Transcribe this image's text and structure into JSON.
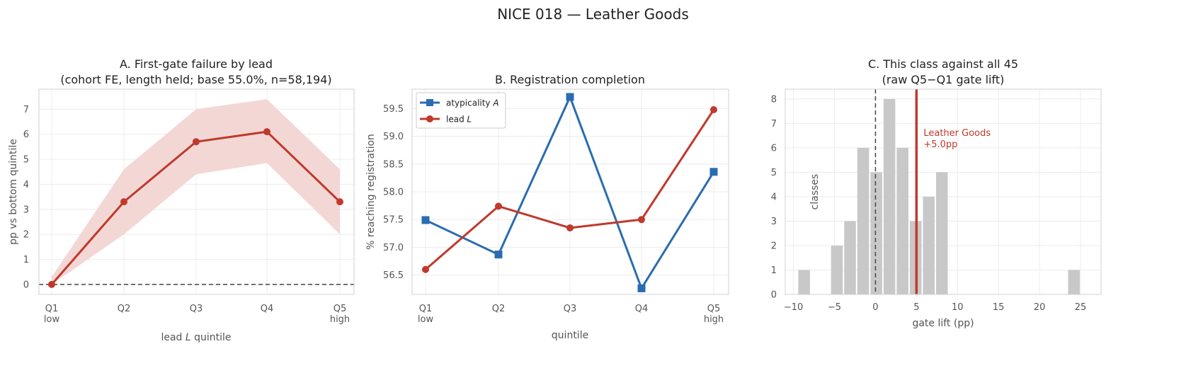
{
  "figure": {
    "title": "NICE 018 — Leather Goods"
  },
  "colors": {
    "red": "#c0392b",
    "blue": "#2b6cb0",
    "band": "#f2d7d5",
    "hist": "#c8c8c8",
    "grid": "#ececec",
    "spine": "#d0d0d0",
    "text": "#555555",
    "title": "#222222",
    "zero": "#444444"
  },
  "chart_data": [
    {
      "id": "A",
      "type": "line",
      "title": "A. First-gate failure by lead",
      "subtitle": "(cohort FE, length held; base 55.0%, n=58,194)",
      "xlabel_main": "lead ",
      "xlabel_italic": "L",
      "xlabel_tail": " quintile",
      "ylabel": "pp vs bottom quintile",
      "categories": [
        "Q1",
        "Q2",
        "Q3",
        "Q4",
        "Q5"
      ],
      "category_sublabels": [
        "low",
        "",
        "",
        "",
        "high"
      ],
      "ylim": [
        -0.4,
        7.8
      ],
      "yticks": [
        0,
        1,
        2,
        3,
        4,
        5,
        6,
        7
      ],
      "grid": true,
      "reference_line": 0,
      "series": [
        {
          "values": [
            0.0,
            3.3,
            5.7,
            6.1,
            3.3
          ],
          "ci_lower": [
            0.0,
            2.0,
            4.4,
            4.85,
            2.0
          ],
          "ci_upper": [
            0.3,
            4.6,
            7.0,
            7.4,
            4.6
          ]
        }
      ]
    },
    {
      "id": "B",
      "type": "line",
      "title": "B. Registration completion",
      "xlabel": "quintile",
      "ylabel": "% reaching registration",
      "categories": [
        "Q1",
        "Q2",
        "Q3",
        "Q4",
        "Q5"
      ],
      "category_sublabels": [
        "low",
        "",
        "",
        "",
        "high"
      ],
      "ylim": [
        56.15,
        59.85
      ],
      "yticks": [
        56.5,
        57.0,
        57.5,
        58.0,
        58.5,
        59.0,
        59.5
      ],
      "ytick_labels": [
        "56.5",
        "57.0",
        "57.5",
        "58.0",
        "58.5",
        "59.0",
        "59.5"
      ],
      "grid": true,
      "legend_position": "top-left",
      "series": [
        {
          "name": "atypicality ",
          "name_italic": "A",
          "marker": "square",
          "values": [
            57.49,
            56.87,
            59.71,
            56.26,
            58.36
          ]
        },
        {
          "name": "lead ",
          "name_italic": "L",
          "marker": "circle",
          "values": [
            56.6,
            57.74,
            57.35,
            57.5,
            59.48
          ]
        }
      ]
    },
    {
      "id": "C",
      "type": "bar",
      "title": "C. This class against all 45",
      "subtitle": "(raw Q5−Q1 gate lift)",
      "xlabel": "gate lift (pp)",
      "ylabel": "classes",
      "xlim": [
        -11,
        27.5
      ],
      "ylim": [
        0,
        8.4
      ],
      "xticks": [
        -10,
        -5,
        0,
        5,
        10,
        15,
        20,
        25
      ],
      "xtick_labels": [
        "−10",
        "−5",
        "0",
        "5",
        "10",
        "15",
        "20",
        "25"
      ],
      "yticks": [
        0,
        1,
        2,
        3,
        4,
        5,
        6,
        7,
        8
      ],
      "grid": true,
      "bin_width": 1.6,
      "bins": [
        {
          "x0": -9.5,
          "count": 1
        },
        {
          "x0": -5.5,
          "count": 2
        },
        {
          "x0": -3.9,
          "count": 3
        },
        {
          "x0": -2.3,
          "count": 6
        },
        {
          "x0": -0.7,
          "count": 5
        },
        {
          "x0": 0.9,
          "count": 8
        },
        {
          "x0": 2.5,
          "count": 6
        },
        {
          "x0": 4.1,
          "count": 3
        },
        {
          "x0": 5.7,
          "count": 4
        },
        {
          "x0": 7.3,
          "count": 5
        },
        {
          "x0": 23.4,
          "count": 1
        }
      ],
      "reference_line": 0,
      "highlight": {
        "value": 5.0,
        "label_line1": "Leather Goods",
        "label_line2": "+5.0pp"
      }
    }
  ]
}
